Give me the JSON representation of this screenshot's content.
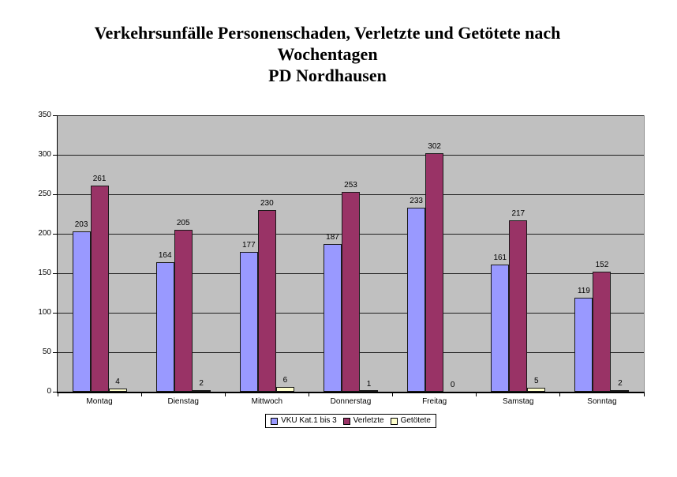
{
  "title": {
    "lines": [
      "Verkehrsunfälle Personenschaden, Verletzte und Getötete nach",
      "Wochentagen",
      "PD Nordhausen"
    ]
  },
  "chart_data": {
    "type": "bar",
    "title": "Verkehrsunfälle Personenschaden, Verletzte und Getötete nach Wochentagen PD Nordhausen",
    "categories": [
      "Montag",
      "Dienstag",
      "Mittwoch",
      "Donnerstag",
      "Freitag",
      "Samstag",
      "Sonntag"
    ],
    "series": [
      {
        "name": "VKU Kat.1 bis 3",
        "color": "#9999FF",
        "values": [
          203,
          164,
          177,
          187,
          233,
          161,
          119
        ]
      },
      {
        "name": "Verletzte",
        "color": "#993366",
        "values": [
          261,
          205,
          230,
          253,
          302,
          217,
          152
        ]
      },
      {
        "name": "Getötete",
        "color": "#FFFFCC",
        "values": [
          4,
          2,
          6,
          1,
          0,
          5,
          2
        ]
      }
    ],
    "xlabel": "",
    "ylabel": "",
    "ylim": [
      0,
      350
    ],
    "yticks": [
      0,
      50,
      100,
      150,
      200,
      250,
      300,
      350
    ],
    "grid": true,
    "data_labels": true,
    "legend_position": "bottom",
    "plot_background": "#C0C0C0",
    "page_background": "#FFFFFF",
    "gridline_color": "#202020",
    "bar_border_color": "#1a1a1a"
  }
}
